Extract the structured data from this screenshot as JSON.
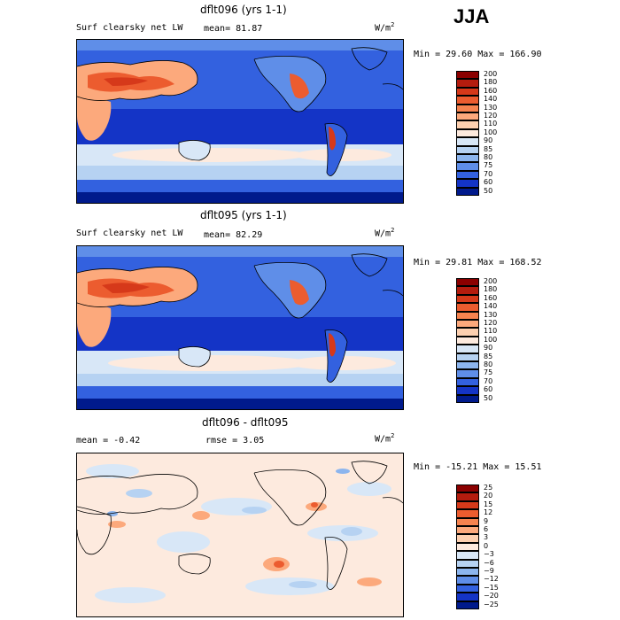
{
  "season": "JJA",
  "chart_data": [
    {
      "type": "heatmap",
      "title": "dflt096 (yrs 1-1)",
      "variable": "Surf clearsky net LW",
      "mean_label": "mean=",
      "mean_value": "81.87",
      "unit_base": "W/m",
      "unit_exp": "2",
      "minmax": "Min =  29.60 Max = 166.90",
      "colorbar": [
        "200",
        "180",
        "160",
        "140",
        "130",
        "120",
        "110",
        "100",
        "90",
        "85",
        "80",
        "75",
        "70",
        "60",
        "50"
      ],
      "colors": [
        "#8b0000",
        "#b41c0e",
        "#d6391a",
        "#ec5c2f",
        "#f6834f",
        "#fca97c",
        "#fdd0b0",
        "#fdeade",
        "#d8e7f7",
        "#b6d2f2",
        "#8cb5ee",
        "#5f8ee8",
        "#3361df",
        "#1434c6",
        "#001a8c"
      ]
    },
    {
      "type": "heatmap",
      "title": "dflt095 (yrs 1-1)",
      "variable": "Surf clearsky net LW",
      "mean_label": "mean=",
      "mean_value": "82.29",
      "unit_base": "W/m",
      "unit_exp": "2",
      "minmax": "Min =  29.81 Max = 168.52",
      "colorbar": [
        "200",
        "180",
        "160",
        "140",
        "130",
        "120",
        "110",
        "100",
        "90",
        "85",
        "80",
        "75",
        "70",
        "60",
        "50"
      ],
      "colors": [
        "#8b0000",
        "#b41c0e",
        "#d6391a",
        "#ec5c2f",
        "#f6834f",
        "#fca97c",
        "#fdd0b0",
        "#fdeade",
        "#d8e7f7",
        "#b6d2f2",
        "#8cb5ee",
        "#5f8ee8",
        "#3361df",
        "#1434c6",
        "#001a8c"
      ]
    },
    {
      "type": "heatmap",
      "title": "dflt096 - dflt095",
      "mean_label": "mean =",
      "mean_value": "-0.42",
      "rmse_label": "rmse =",
      "rmse_value": "3.05",
      "unit_base": "W/m",
      "unit_exp": "2",
      "minmax": "Min = -15.21 Max =  15.51",
      "colorbar": [
        "25",
        "20",
        "15",
        "12",
        "9",
        "6",
        "3",
        "0",
        "−3",
        "−6",
        "−9",
        "−12",
        "−15",
        "−20",
        "−25"
      ],
      "colors": [
        "#8b0000",
        "#b41c0e",
        "#d6391a",
        "#ec5c2f",
        "#f6834f",
        "#fca97c",
        "#fdd0b0",
        "#fdeade",
        "#d8e7f7",
        "#b6d2f2",
        "#8cb5ee",
        "#5f8ee8",
        "#3361df",
        "#1434c6",
        "#001a8c"
      ]
    }
  ]
}
